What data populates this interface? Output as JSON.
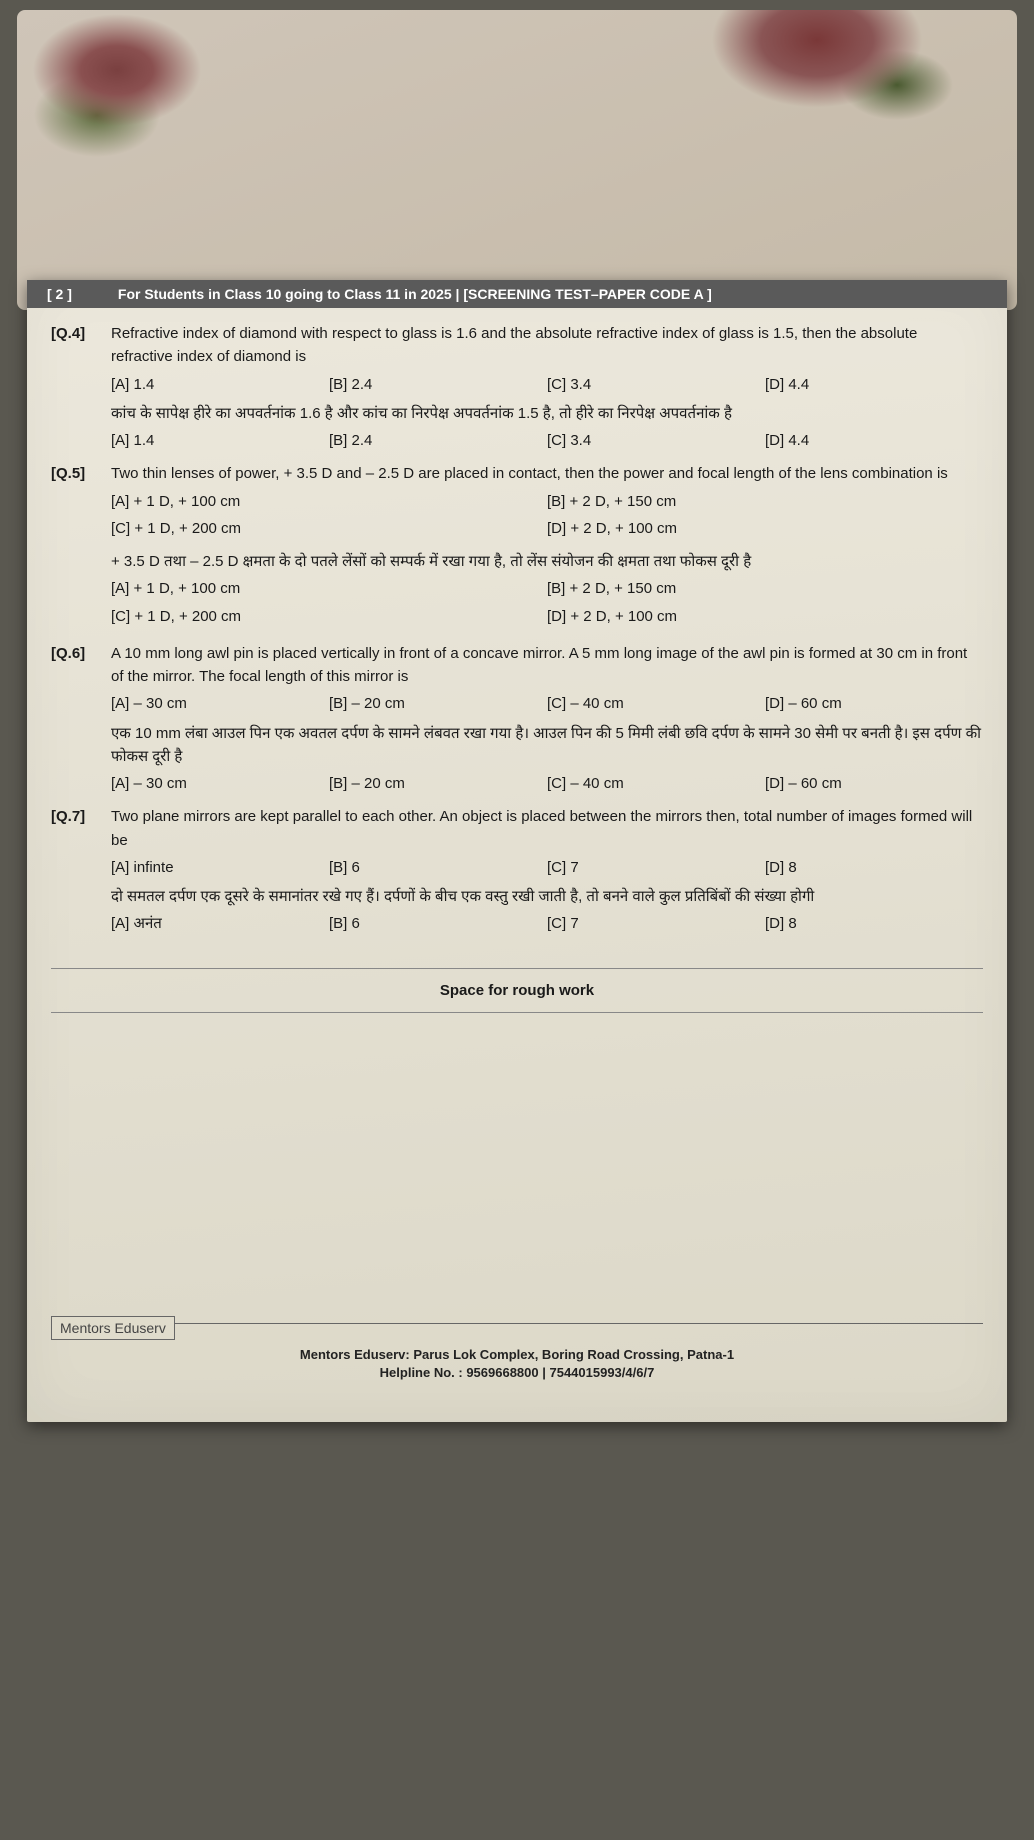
{
  "header": {
    "page_num": "[ 2 ]",
    "title": "For Students in Class 10 going to Class 11 in 2025  |  [SCREENING TEST–PAPER CODE A ]"
  },
  "q4": {
    "num": "[Q.4]",
    "en": "Refractive index of diamond with respect to glass is 1.6 and the absolute refractive index of glass is 1.5, then the absolute refractive index of diamond is",
    "en_opts": {
      "a": "[A]  1.4",
      "b": "[B]  2.4",
      "c": "[C]  3.4",
      "d": "[D]  4.4"
    },
    "hi": "कांच के सापेक्ष हीरे का अपवर्तनांक 1.6 है और कांच का निरपेक्ष अपवर्तनांक 1.5 है, तो हीरे का निरपेक्ष अपवर्तनांक है",
    "hi_opts": {
      "a": "[A]  1.4",
      "b": "[B]  2.4",
      "c": "[C]  3.4",
      "d": "[D]  4.4"
    }
  },
  "q5": {
    "num": "[Q.5]",
    "en": "Two thin lenses of power, + 3.5 D and – 2.5 D are placed in contact, then the power and focal length of the lens combination is",
    "en_opts": {
      "a": "[A]  + 1 D, + 100 cm",
      "b": "[B]  + 2 D, + 150 cm",
      "c": "[C]  + 1 D, + 200 cm",
      "d": "[D]  + 2 D, + 100 cm"
    },
    "hi": "+ 3.5 D तथा – 2.5 D क्षमता के दो पतले लेंसों को सम्पर्क में रखा गया है, तो लेंस संयोजन की क्षमता तथा फोकस दूरी है",
    "hi_opts": {
      "a": "[A]  + 1 D, + 100 cm",
      "b": "[B]  + 2 D, + 150 cm",
      "c": "[C]  + 1 D, + 200 cm",
      "d": "[D]  + 2 D, + 100 cm"
    }
  },
  "q6": {
    "num": "[Q.6]",
    "en": "A 10 mm long awl pin is placed vertically in front of a concave mirror. A 5 mm long image of the awl pin is formed at 30 cm in front of the mirror. The focal length of this mirror is",
    "en_opts": {
      "a": "[A]  – 30 cm",
      "b": "[B]  – 20 cm",
      "c": "[C]  – 40 cm",
      "d": "[D]  – 60 cm"
    },
    "hi": "एक 10 mm लंबा आउल पिन एक अवतल दर्पण के सामने लंबवत रखा गया है। आउल पिन की 5 मिमी लंबी छवि दर्पण के सामने 30 सेमी पर बनती है। इस दर्पण की फोकस दूरी है",
    "hi_opts": {
      "a": "[A]  – 30 cm",
      "b": "[B]  – 20 cm",
      "c": "[C]  – 40 cm",
      "d": "[D]  – 60 cm"
    }
  },
  "q7": {
    "num": "[Q.7]",
    "en": "Two plane mirrors are kept parallel to each other. An object is placed between the mirrors then, total number of images formed will be",
    "en_opts": {
      "a": "[A]  infinte",
      "b": "[B]  6",
      "c": "[C]  7",
      "d": "[D]  8"
    },
    "hi": "दो समतल दर्पण एक दूसरे के समानांतर रखे गए हैं। दर्पणों के बीच एक वस्तु रखी जाती है, तो बनने वाले कुल प्रतिबिंबों की संख्या होगी",
    "hi_opts": {
      "a": "[A]  अनंत",
      "b": "[B]  6",
      "c": "[C]  7",
      "d": "[D]  8"
    }
  },
  "rough": "Space for rough work",
  "footer": {
    "logo": "Mentors Eduserv",
    "line1": "Mentors Eduserv: Parus Lok Complex, Boring Road Crossing, Patna-1",
    "line2": "Helpline No. : 9569668800 | 7544015993/4/6/7"
  },
  "colors": {
    "header_bg": "#5a5a5a",
    "header_text": "#ffffff",
    "paper_bg": "#e8e4d8",
    "text": "#1a1a1a"
  }
}
